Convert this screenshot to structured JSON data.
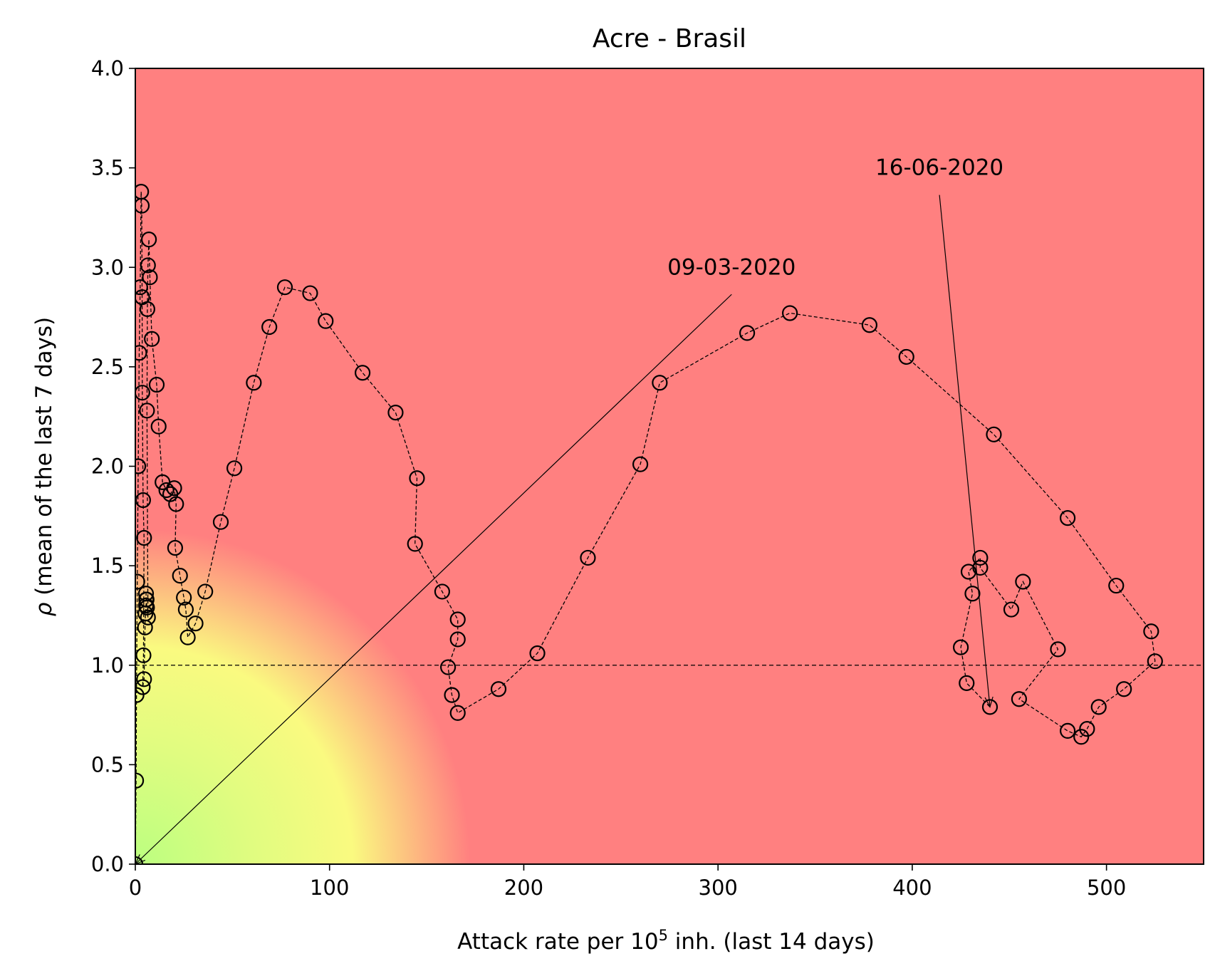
{
  "chart_data": {
    "type": "scatter",
    "title": "Acre - Brasil",
    "xlabel_prefix": "Attack rate per 10",
    "xlabel_sup": "5",
    "xlabel_suffix": " inh. (last 14 days)",
    "ylabel_symbol": "ρ",
    "ylabel_text": " (mean of the last 7 days)",
    "xlim": [
      0,
      550
    ],
    "ylim": [
      0,
      4
    ],
    "xticks": [
      0,
      100,
      200,
      300,
      400,
      500
    ],
    "yticks": [
      0.0,
      0.5,
      1.0,
      1.5,
      2.0,
      2.5,
      3.0,
      3.5,
      4.0
    ],
    "reference_line_y": 1.0,
    "background": {
      "danger_color": "#ff8080",
      "caution_color": "#fafa80",
      "safe_color": "#bbff80"
    },
    "grid": false,
    "series": [
      {
        "points": [
          [
            0.0,
            0.0
          ],
          [
            0.4,
            0.42
          ],
          [
            0.6,
            0.85
          ],
          [
            1.0,
            1.42
          ],
          [
            1.5,
            2.0
          ],
          [
            2.0,
            2.57
          ],
          [
            2.5,
            2.9
          ],
          [
            3.0,
            3.38
          ],
          [
            3.3,
            3.31
          ],
          [
            3.5,
            2.85
          ],
          [
            3.6,
            2.37
          ],
          [
            4.0,
            1.83
          ],
          [
            4.5,
            1.64
          ],
          [
            4.2,
            1.05
          ],
          [
            3.8,
            0.89
          ],
          [
            4.5,
            0.93
          ],
          [
            5.0,
            1.19
          ],
          [
            5.2,
            1.26
          ],
          [
            5.5,
            1.3
          ],
          [
            5.8,
            1.33
          ],
          [
            5.5,
            1.36
          ],
          [
            5.6,
            1.33
          ],
          [
            6.0,
            1.29
          ],
          [
            6.5,
            1.24
          ],
          [
            6.0,
            2.28
          ],
          [
            6.2,
            2.79
          ],
          [
            6.5,
            3.01
          ],
          [
            7.0,
            3.14
          ],
          [
            7.5,
            2.95
          ],
          [
            8.5,
            2.64
          ],
          [
            11.0,
            2.41
          ],
          [
            12.0,
            2.2
          ],
          [
            14.0,
            1.92
          ],
          [
            16.0,
            1.88
          ],
          [
            18.0,
            1.86
          ],
          [
            20.0,
            1.89
          ],
          [
            21.0,
            1.81
          ],
          [
            20.5,
            1.59
          ],
          [
            23.0,
            1.45
          ],
          [
            25.0,
            1.34
          ],
          [
            26.0,
            1.28
          ],
          [
            27.0,
            1.14
          ],
          [
            31.0,
            1.21
          ],
          [
            36.0,
            1.37
          ],
          [
            44.0,
            1.72
          ],
          [
            51.0,
            1.99
          ],
          [
            61.0,
            2.42
          ],
          [
            69.0,
            2.7
          ],
          [
            77.0,
            2.9
          ],
          [
            90.0,
            2.87
          ],
          [
            98.0,
            2.73
          ],
          [
            117.0,
            2.47
          ],
          [
            134.0,
            2.27
          ],
          [
            145.0,
            1.94
          ],
          [
            144.0,
            1.61
          ],
          [
            158.0,
            1.37
          ],
          [
            166.0,
            1.23
          ],
          [
            166.0,
            1.13
          ],
          [
            161.0,
            0.99
          ],
          [
            163.0,
            0.85
          ],
          [
            166.0,
            0.76
          ],
          [
            187.0,
            0.88
          ],
          [
            207.0,
            1.06
          ],
          [
            233.0,
            1.54
          ],
          [
            260.0,
            2.01
          ],
          [
            270.0,
            2.42
          ],
          [
            315.0,
            2.67
          ],
          [
            337.0,
            2.77
          ],
          [
            378.0,
            2.71
          ],
          [
            397.0,
            2.55
          ],
          [
            442.0,
            2.16
          ],
          [
            480.0,
            1.74
          ],
          [
            505.0,
            1.4
          ],
          [
            523.0,
            1.17
          ],
          [
            525.0,
            1.02
          ],
          [
            509.0,
            0.88
          ],
          [
            496.0,
            0.79
          ],
          [
            490.0,
            0.68
          ],
          [
            487.0,
            0.64
          ],
          [
            480.0,
            0.67
          ],
          [
            455.0,
            0.83
          ],
          [
            475.0,
            1.08
          ],
          [
            457.0,
            1.42
          ],
          [
            451.0,
            1.28
          ],
          [
            435.0,
            1.49
          ],
          [
            435.0,
            1.54
          ],
          [
            429.0,
            1.47
          ],
          [
            431.0,
            1.36
          ],
          [
            425.0,
            1.09
          ],
          [
            428.0,
            0.91
          ],
          [
            440.0,
            0.79
          ]
        ]
      }
    ],
    "annotations": [
      {
        "text": "09-03-2020",
        "text_x": 307,
        "text_y": 3.0,
        "point_x": 0.0,
        "point_y": 0.0
      },
      {
        "text": "16-06-2020",
        "text_x": 414,
        "text_y": 3.5,
        "point_x": 440.0,
        "point_y": 0.79
      }
    ]
  }
}
